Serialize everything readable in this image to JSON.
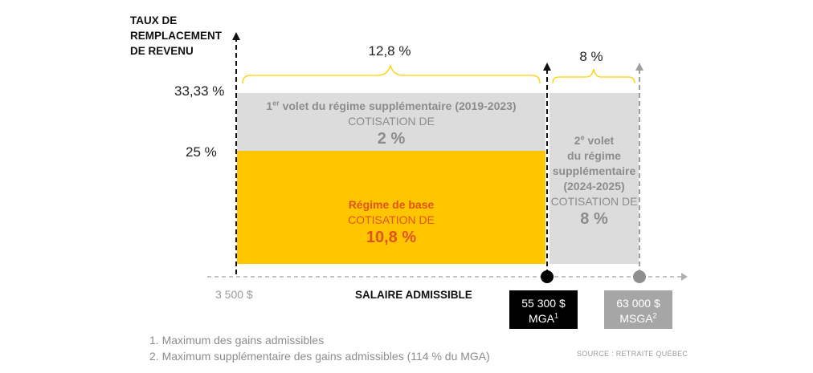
{
  "y_axis": {
    "label_lines": [
      "TAUX DE",
      "REMPLACEMENT",
      "DE REVENU"
    ],
    "tick_top": "33,33 %",
    "tick_mid": "25 %"
  },
  "spans": {
    "first": "12,8 %",
    "second": "8 %"
  },
  "blocks": {
    "volet1": {
      "title_prefix": "1",
      "title_sup": "er",
      "title_rest": " volet du régime supplémentaire (2019-2023)",
      "cotisation": "COTISATION DE",
      "percent": "2 %"
    },
    "base": {
      "title": "Régime de base",
      "cotisation": "COTISATION DE",
      "percent": "10,8 %"
    },
    "volet2": {
      "line1_prefix": "2",
      "line1_sup": "e",
      "line1_rest": " volet",
      "line2": "du régime",
      "line3": "supplémentaire",
      "line4": "(2024-2025)",
      "cotisation": "COTISATION DE",
      "percent": "8 %"
    }
  },
  "x_axis": {
    "label": "SALAIRE ADMISSIBLE",
    "start": "3 500 $",
    "mga_amount": "55 300 $",
    "mga_label": "MGA",
    "mga_sup": "1",
    "msga_amount": "63 000 $",
    "msga_label": "MSGA",
    "msga_sup": "2"
  },
  "footnotes": [
    "1. Maximum des gains admissibles",
    "2. Maximum supplémentaire des gains admissibles (114 % du MGA)"
  ],
  "source": "SOURCE : RETRAITE QUÉBEC",
  "colors": {
    "base_fill": "#ffc600",
    "volet_fill": "#dcdcdc",
    "accent_text": "#e0541a",
    "grey_text": "#8c8c8c",
    "mga_box": "#000000",
    "msga_box": "#a6a6a6",
    "brace": "#ffd000"
  }
}
